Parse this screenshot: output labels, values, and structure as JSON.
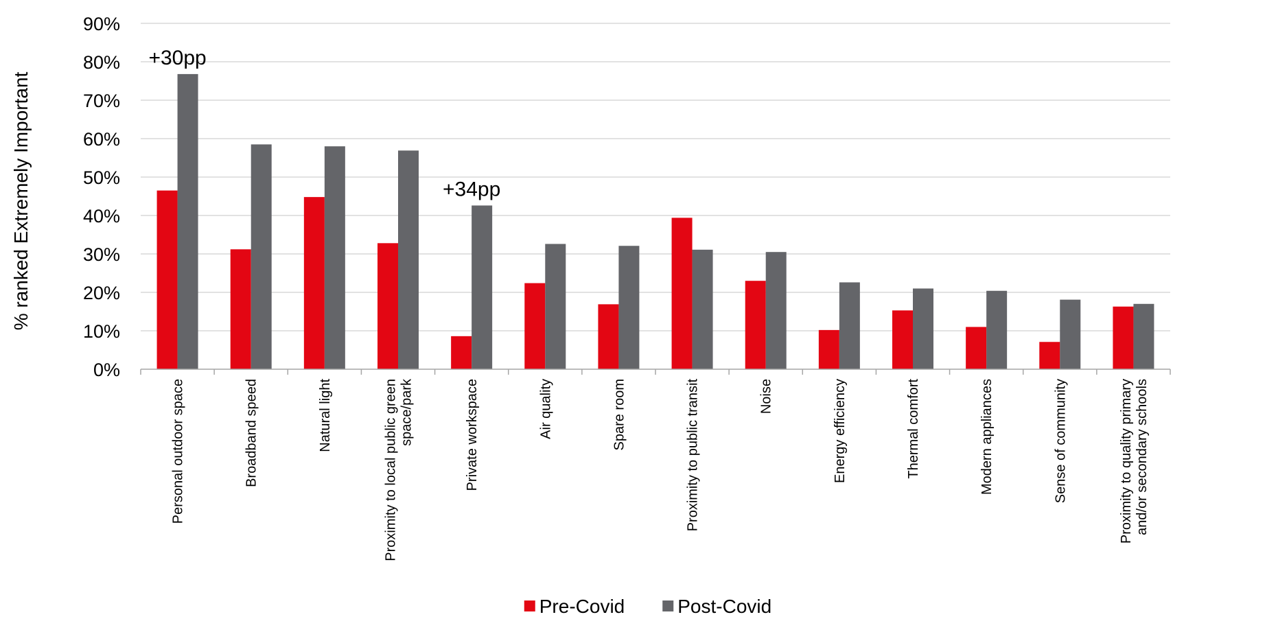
{
  "chart_data": {
    "type": "bar",
    "ylabel": "% ranked Extremely Important",
    "ylim": [
      0,
      90
    ],
    "y_tick_labels": [
      "0%",
      "10%",
      "20%",
      "30%",
      "40%",
      "50%",
      "60%",
      "70%",
      "80%",
      "90%"
    ],
    "grid": true,
    "legend_position": "bottom",
    "categories": [
      "Personal outdoor space",
      "Broadband speed",
      "Natural light",
      "Proximity to local public green space/park",
      "Private workspace",
      "Air quality",
      "Spare room",
      "Proximity to public transit",
      "Noise",
      "Energy efficiency",
      "Thermal comfort",
      "Modern appliances",
      "Sense of community",
      "Proximity to quality primary and/or secondary schools"
    ],
    "category_lines": [
      [
        "Personal outdoor space"
      ],
      [
        "Broadband speed"
      ],
      [
        "Natural light"
      ],
      [
        "Proximity to local public green",
        "space/park"
      ],
      [
        "Private workspace"
      ],
      [
        "Air quality"
      ],
      [
        "Spare room"
      ],
      [
        "Proximity to public transit"
      ],
      [
        "Noise"
      ],
      [
        "Energy efficiency"
      ],
      [
        "Thermal comfort"
      ],
      [
        "Modern appliances"
      ],
      [
        "Sense of community"
      ],
      [
        "Proximity to quality primary",
        "and/or secondary schools"
      ]
    ],
    "series": [
      {
        "name": "Pre-Covid",
        "color": "#e30613",
        "values": [
          46.5,
          31.2,
          44.8,
          32.8,
          8.6,
          22.4,
          16.9,
          39.4,
          23.0,
          10.2,
          15.3,
          11.0,
          7.1,
          16.3
        ]
      },
      {
        "name": "Post-Covid",
        "color": "#646569",
        "values": [
          76.8,
          58.5,
          58.0,
          56.9,
          42.6,
          32.6,
          32.1,
          31.1,
          30.5,
          22.6,
          21.0,
          20.4,
          18.1,
          17.0
        ]
      }
    ],
    "annotations": [
      {
        "text": "+30pp",
        "category_index": 0
      },
      {
        "text": "+34pp",
        "category_index": 4
      }
    ]
  }
}
